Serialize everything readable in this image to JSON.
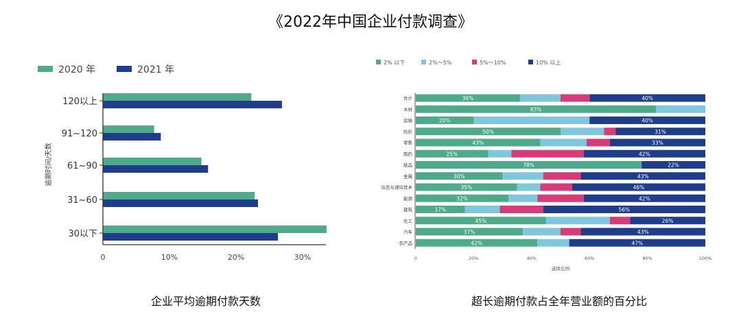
{
  "title": "《2022年中国企业付款调查》",
  "colors": {
    "green": "#4eaa8b",
    "navy": "#1f3d8b",
    "lightblue": "#80c6dd",
    "pink": "#d63d78"
  },
  "chart_data": [
    {
      "type": "bar",
      "orientation": "horizontal",
      "caption": "企业平均逾期付款天数",
      "ylabel": "逾期时间/天数",
      "xlabel": "",
      "categories": [
        "120以上",
        "91~120",
        "61~90",
        "31~60",
        "30以下"
      ],
      "xlim": [
        0,
        34
      ],
      "xticks": [
        "0",
        "10%",
        "20%",
        "30%"
      ],
      "xtick_values": [
        0,
        10,
        20,
        30
      ],
      "legend_position": "top-left",
      "series": [
        {
          "name": "2020 年",
          "color": "#4eaa8b",
          "values": [
            22.3,
            7.7,
            14.8,
            22.8,
            33.6
          ]
        },
        {
          "name": "2021 年",
          "color": "#1f3d8b",
          "values": [
            26.9,
            8.7,
            15.8,
            23.3,
            26.3
          ]
        }
      ]
    },
    {
      "type": "bar",
      "orientation": "horizontal",
      "stacked": true,
      "caption": "超长逾期付款占全年营业额的百分比",
      "xlabel": "选择比例",
      "xlim": [
        0,
        100
      ],
      "xticks": [
        "0",
        "20%",
        "40%",
        "60%",
        "80%",
        "100%"
      ],
      "xtick_values": [
        0,
        20,
        40,
        60,
        80,
        100
      ],
      "legend_position": "top",
      "categories": [
        "合计",
        "木材",
        "运输",
        "纺织",
        "零售",
        "制药",
        "纸品",
        "金属",
        "信息与通信技术",
        "能源",
        "建筑",
        "化工",
        "汽车",
        "农产品"
      ],
      "series": [
        {
          "name": "2% 以下",
          "color": "#4eaa8b",
          "values": [
            36,
            83,
            20,
            50,
            43,
            25,
            78,
            30,
            35,
            32,
            17,
            45,
            37,
            42
          ]
        },
        {
          "name": "2%～5%",
          "color": "#80c6dd",
          "values": [
            14,
            17,
            40,
            15,
            16,
            8,
            0,
            14,
            8,
            10,
            12,
            22,
            13,
            11
          ]
        },
        {
          "name": "5%～10%",
          "color": "#d63d78",
          "values": [
            10,
            0,
            0,
            4,
            8,
            25,
            0,
            13,
            11,
            16,
            15,
            7,
            7,
            0
          ]
        },
        {
          "name": "10% 以上",
          "color": "#1f3d8b",
          "values": [
            40,
            0,
            40,
            31,
            33,
            42,
            22,
            43,
            46,
            42,
            56,
            26,
            43,
            47
          ]
        }
      ],
      "data_labels": {
        "2% 以下": [
          "36%",
          "83%",
          "20%",
          "50%",
          "43%",
          "25%",
          "78%",
          "30%",
          "35%",
          "32%",
          "17%",
          "45%",
          "37%",
          "42%"
        ],
        "10% 以上": [
          "40%",
          "",
          "40%",
          "31%",
          "33%",
          "42%",
          "22%",
          "43%",
          "46%",
          "42%",
          "56%",
          "26%",
          "43%",
          "47%"
        ]
      }
    }
  ]
}
